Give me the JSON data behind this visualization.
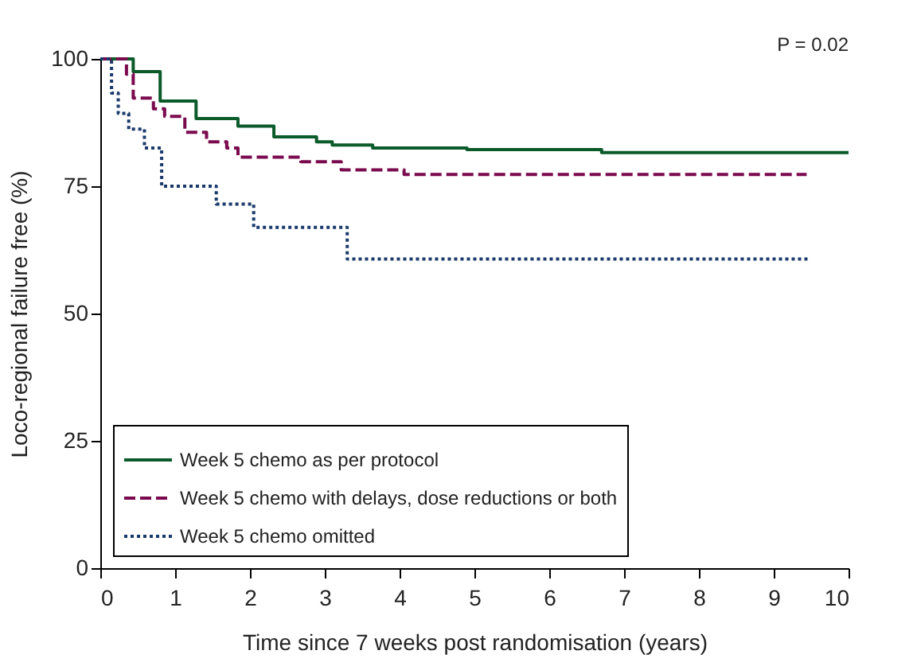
{
  "chart_data": {
    "type": "step",
    "xlabel": "Time since 7 weeks post randomisation (years)",
    "ylabel": "Loco-regional failure free (%)",
    "xlim": [
      0,
      10
    ],
    "xticks": [
      0,
      1,
      2,
      3,
      4,
      5,
      6,
      7,
      8,
      9,
      10
    ],
    "ylim": [
      0,
      100
    ],
    "yticks": [
      0,
      25,
      50,
      75,
      100
    ],
    "grid": false,
    "legend": "bottom left",
    "marker": "none",
    "annotations": [
      "P = 0.02"
    ],
    "series": [
      {
        "name": "Week 5 chemo as per protocol",
        "color": "#0b5a2a",
        "line_style": "solid",
        "x": [
          0,
          0.23,
          0.44,
          0.8,
          1.28,
          1.84,
          2.32,
          2.89,
          3.1,
          3.64,
          4.9,
          6.7,
          10
        ],
        "values": [
          100,
          100,
          97.5,
          91.7,
          88.3,
          86.8,
          84.7,
          83.7,
          83.1,
          82.5,
          82.2,
          81.6,
          81.6
        ]
      },
      {
        "name": "Week 5 chemo with delays, dose reductions or both",
        "color": "#7a0a4e",
        "line_style": "dashed",
        "x": [
          0,
          0.2,
          0.35,
          0.44,
          0.71,
          0.86,
          1.13,
          1.42,
          1.69,
          1.84,
          2.68,
          3.22,
          4.06,
          9.44
        ],
        "values": [
          100,
          100,
          97,
          92.3,
          90.2,
          88.7,
          85.6,
          83.7,
          82.5,
          80.7,
          79.8,
          78.2,
          77.3,
          77.3
        ]
      },
      {
        "name": "Week 5 chemo omitted",
        "color": "#1a3a6b",
        "line_style": "dotted",
        "x": [
          0,
          0.1,
          0.15,
          0.24,
          0.38,
          0.59,
          0.82,
          1.55,
          2.05,
          3.3,
          9.48
        ],
        "values": [
          100,
          100,
          93.3,
          89.3,
          86.2,
          82.5,
          75,
          71.5,
          66.9,
          60.7,
          60.7
        ]
      }
    ]
  }
}
